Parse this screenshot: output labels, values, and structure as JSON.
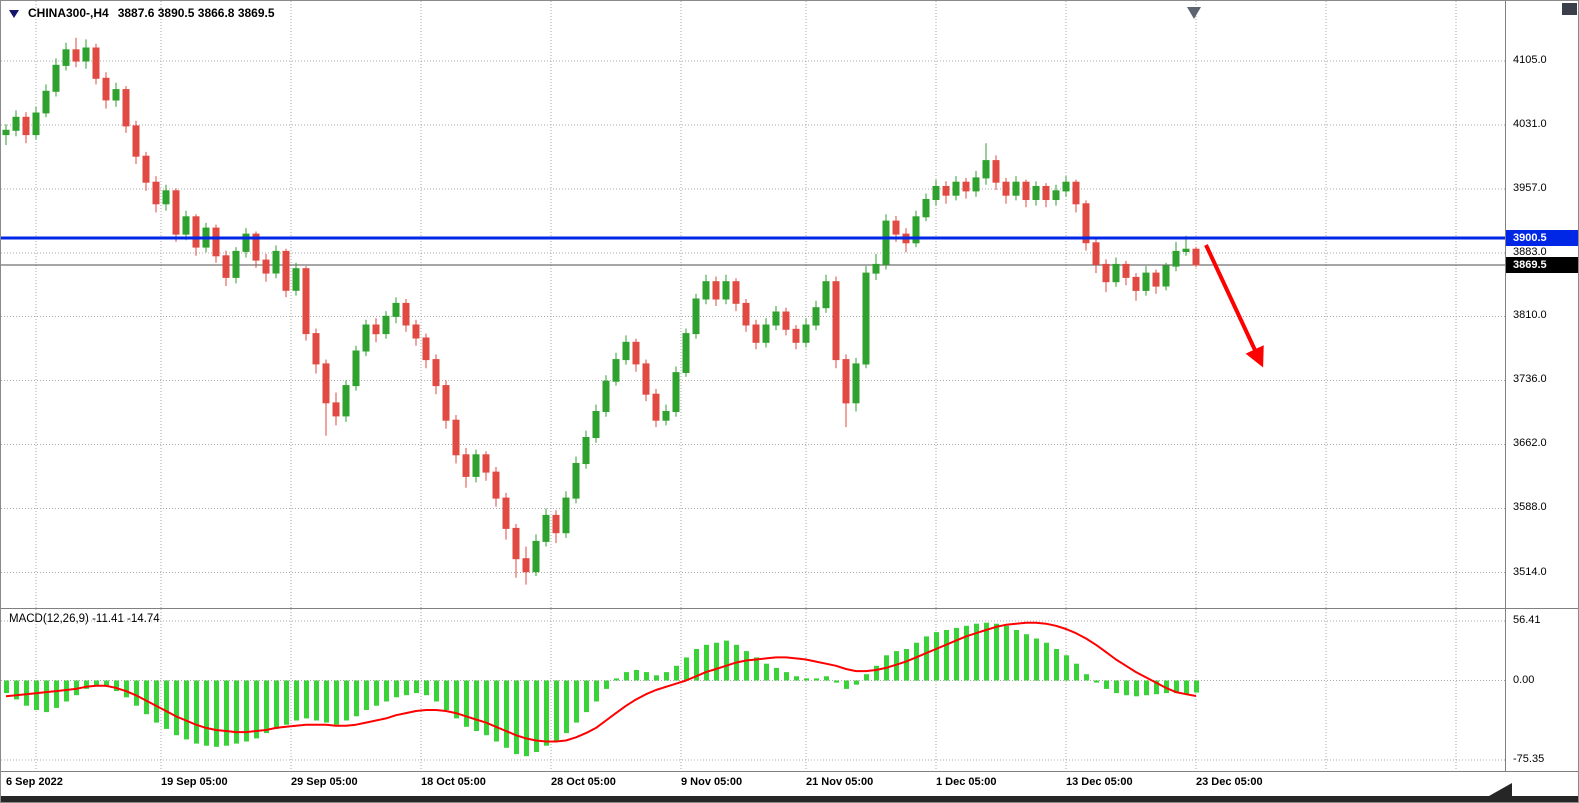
{
  "header": {
    "symbol_list_icon": "▼",
    "title": "CHINA300-,H4",
    "ohlc": "3887.6 3890.5 3866.8 3869.5"
  },
  "price_axis": {
    "line_tag": {
      "text": "3900.5",
      "value": 3900.5
    },
    "price_tag": {
      "text": "3869.5",
      "value": 3869.5
    }
  },
  "macd_panel": {
    "label": "MACD(12,26,9) -11.41 -14.74"
  },
  "colors": {
    "background": "#FFFFFF",
    "grid": "#A8A8A8",
    "candle_up": "#2FA12F",
    "candle_down": "#E04A42",
    "macd_histogram": "#39D339",
    "macd_signal": "#FF0000",
    "horizontal_line": "#0026E6",
    "line_tag_bg": "#0026E6",
    "price_tag_bg": "#000000",
    "current_price_line": "#4D4D4D",
    "arrow": "#FF0000"
  },
  "chart_data": [
    {
      "type": "candlestick",
      "title": "CHINA300-,H4",
      "ohlc_header": {
        "open": 3887.6,
        "high": 3890.5,
        "low": 3866.8,
        "close": 3869.5
      },
      "x_tick_labels": [
        "6 Sep 2022",
        "19 Sep 05:00",
        "29 Sep 05:00",
        "18 Oct 05:00",
        "28 Oct 05:00",
        "9 Nov 05:00",
        "21 Nov 05:00",
        "1 Dec 05:00",
        "13 Dec 05:00",
        "23 Dec 05:00"
      ],
      "y_tick_labels": [
        "4105.0",
        "4031.0",
        "3957.0",
        "3883.0",
        "3810.0",
        "3736.0",
        "3662.0",
        "3588.0",
        "3514.0"
      ],
      "y_tick_values": [
        4105,
        4031,
        3957,
        3883,
        3810,
        3736,
        3662,
        3588,
        3514
      ],
      "ylim": [
        3473,
        4142
      ],
      "grid": true,
      "horizontal_line_value": 3900.5,
      "last_price": 3869.5,
      "trend_arrow": {
        "direction": "down-right",
        "color": "#FF0000"
      },
      "candles_ohlc": [
        [
          4020,
          4032,
          4008,
          4025
        ],
        [
          4025,
          4048,
          4018,
          4040
        ],
        [
          4040,
          4046,
          4010,
          4020
        ],
        [
          4020,
          4052,
          4014,
          4045
        ],
        [
          4045,
          4078,
          4040,
          4070
        ],
        [
          4070,
          4108,
          4064,
          4100
        ],
        [
          4100,
          4126,
          4094,
          4118
        ],
        [
          4118,
          4132,
          4098,
          4105
        ],
        [
          4105,
          4130,
          4096,
          4120
        ],
        [
          4120,
          4125,
          4078,
          4085
        ],
        [
          4085,
          4092,
          4050,
          4060
        ],
        [
          4060,
          4080,
          4052,
          4072
        ],
        [
          4072,
          4076,
          4022,
          4030
        ],
        [
          4030,
          4036,
          3986,
          3995
        ],
        [
          3995,
          4000,
          3955,
          3965
        ],
        [
          3965,
          3972,
          3930,
          3940
        ],
        [
          3940,
          3962,
          3932,
          3955
        ],
        [
          3955,
          3958,
          3896,
          3905
        ],
        [
          3905,
          3932,
          3898,
          3925
        ],
        [
          3925,
          3928,
          3880,
          3890
        ],
        [
          3890,
          3918,
          3884,
          3912
        ],
        [
          3912,
          3916,
          3872,
          3880
        ],
        [
          3880,
          3886,
          3845,
          3855
        ],
        [
          3855,
          3890,
          3848,
          3885
        ],
        [
          3885,
          3912,
          3878,
          3905
        ],
        [
          3905,
          3908,
          3866,
          3875
        ],
        [
          3875,
          3882,
          3850,
          3860
        ],
        [
          3860,
          3892,
          3854,
          3885
        ],
        [
          3885,
          3888,
          3832,
          3840
        ],
        [
          3840,
          3872,
          3834,
          3865
        ],
        [
          3865,
          3868,
          3782,
          3790
        ],
        [
          3790,
          3796,
          3744,
          3755
        ],
        [
          3755,
          3760,
          3672,
          3710
        ],
        [
          3710,
          3722,
          3684,
          3695
        ],
        [
          3695,
          3736,
          3688,
          3730
        ],
        [
          3730,
          3776,
          3724,
          3770
        ],
        [
          3770,
          3806,
          3764,
          3800
        ],
        [
          3800,
          3808,
          3780,
          3790
        ],
        [
          3790,
          3816,
          3784,
          3810
        ],
        [
          3810,
          3832,
          3802,
          3825
        ],
        [
          3825,
          3830,
          3792,
          3800
        ],
        [
          3800,
          3806,
          3776,
          3785
        ],
        [
          3785,
          3790,
          3750,
          3760
        ],
        [
          3760,
          3766,
          3720,
          3730
        ],
        [
          3730,
          3736,
          3680,
          3690
        ],
        [
          3690,
          3696,
          3640,
          3650
        ],
        [
          3650,
          3658,
          3612,
          3625
        ],
        [
          3625,
          3656,
          3618,
          3650
        ],
        [
          3650,
          3654,
          3620,
          3630
        ],
        [
          3630,
          3636,
          3590,
          3600
        ],
        [
          3600,
          3606,
          3552,
          3565
        ],
        [
          3565,
          3570,
          3508,
          3530
        ],
        [
          3530,
          3544,
          3500,
          3515
        ],
        [
          3515,
          3558,
          3510,
          3550
        ],
        [
          3550,
          3588,
          3544,
          3580
        ],
        [
          3580,
          3586,
          3548,
          3560
        ],
        [
          3560,
          3608,
          3554,
          3600
        ],
        [
          3600,
          3648,
          3594,
          3640
        ],
        [
          3640,
          3678,
          3634,
          3670
        ],
        [
          3670,
          3708,
          3664,
          3700
        ],
        [
          3700,
          3742,
          3694,
          3735
        ],
        [
          3735,
          3768,
          3730,
          3760
        ],
        [
          3760,
          3788,
          3754,
          3780
        ],
        [
          3780,
          3784,
          3746,
          3755
        ],
        [
          3755,
          3760,
          3712,
          3720
        ],
        [
          3720,
          3726,
          3682,
          3690
        ],
        [
          3690,
          3708,
          3684,
          3700
        ],
        [
          3700,
          3752,
          3694,
          3745
        ],
        [
          3745,
          3796,
          3740,
          3790
        ],
        [
          3790,
          3836,
          3784,
          3830
        ],
        [
          3830,
          3858,
          3824,
          3850
        ],
        [
          3850,
          3856,
          3822,
          3830
        ],
        [
          3830,
          3858,
          3824,
          3850
        ],
        [
          3850,
          3854,
          3816,
          3825
        ],
        [
          3825,
          3830,
          3792,
          3800
        ],
        [
          3800,
          3806,
          3772,
          3780
        ],
        [
          3780,
          3808,
          3774,
          3800
        ],
        [
          3800,
          3822,
          3794,
          3815
        ],
        [
          3815,
          3820,
          3788,
          3795
        ],
        [
          3795,
          3800,
          3772,
          3780
        ],
        [
          3780,
          3808,
          3774,
          3800
        ],
        [
          3800,
          3828,
          3794,
          3820
        ],
        [
          3820,
          3858,
          3814,
          3850
        ],
        [
          3850,
          3856,
          3750,
          3760
        ],
        [
          3760,
          3766,
          3682,
          3710
        ],
        [
          3710,
          3762,
          3700,
          3755
        ],
        [
          3755,
          3868,
          3750,
          3860
        ],
        [
          3860,
          3882,
          3852,
          3870
        ],
        [
          3870,
          3928,
          3864,
          3920
        ],
        [
          3920,
          3926,
          3896,
          3905
        ],
        [
          3905,
          3912,
          3884,
          3895
        ],
        [
          3895,
          3932,
          3890,
          3925
        ],
        [
          3925,
          3952,
          3920,
          3945
        ],
        [
          3945,
          3968,
          3938,
          3960
        ],
        [
          3960,
          3966,
          3940,
          3950
        ],
        [
          3950,
          3972,
          3944,
          3965
        ],
        [
          3965,
          3970,
          3946,
          3955
        ],
        [
          3955,
          3978,
          3948,
          3970
        ],
        [
          3970,
          4010,
          3962,
          3990
        ],
        [
          3990,
          3996,
          3956,
          3965
        ],
        [
          3965,
          3970,
          3940,
          3950
        ],
        [
          3950,
          3972,
          3944,
          3965
        ],
        [
          3965,
          3968,
          3936,
          3945
        ],
        [
          3945,
          3966,
          3938,
          3960
        ],
        [
          3960,
          3964,
          3936,
          3945
        ],
        [
          3945,
          3962,
          3938,
          3955
        ],
        [
          3955,
          3972,
          3948,
          3965
        ],
        [
          3965,
          3968,
          3930,
          3940
        ],
        [
          3940,
          3944,
          3886,
          3895
        ],
        [
          3895,
          3900,
          3860,
          3870
        ],
        [
          3870,
          3876,
          3838,
          3850
        ],
        [
          3850,
          3878,
          3844,
          3870
        ],
        [
          3870,
          3874,
          3846,
          3855
        ],
        [
          3855,
          3860,
          3828,
          3840
        ],
        [
          3840,
          3868,
          3834,
          3860
        ],
        [
          3860,
          3864,
          3836,
          3845
        ],
        [
          3845,
          3872,
          3840,
          3868
        ],
        [
          3868,
          3896,
          3862,
          3885
        ],
        [
          3885,
          3903,
          3880,
          3887.6
        ],
        [
          3887.6,
          3890.5,
          3866.8,
          3869.5
        ]
      ]
    },
    {
      "type": "bar",
      "title": "MACD(12,26,9)",
      "values_display": {
        "macd": -11.41,
        "signal": -14.74
      },
      "y_tick_labels": [
        "56.41",
        "0.00",
        "-75.35"
      ],
      "y_tick_values": [
        56.41,
        0,
        -75.35
      ],
      "ylim": [
        -86,
        68
      ],
      "series": [
        {
          "name": "MACD histogram",
          "type": "bar",
          "values": [
            -12,
            -18,
            -24,
            -28,
            -30,
            -26,
            -20,
            -14,
            -8,
            -5,
            -6,
            -10,
            -16,
            -24,
            -32,
            -40,
            -46,
            -52,
            -56,
            -60,
            -62,
            -63,
            -62,
            -60,
            -58,
            -55,
            -50,
            -46,
            -42,
            -38,
            -36,
            -38,
            -40,
            -42,
            -38,
            -34,
            -28,
            -24,
            -20,
            -16,
            -14,
            -12,
            -14,
            -20,
            -28,
            -36,
            -44,
            -48,
            -52,
            -58,
            -64,
            -70,
            -72,
            -68,
            -62,
            -58,
            -50,
            -40,
            -30,
            -20,
            -8,
            2,
            8,
            10,
            8,
            5,
            8,
            14,
            22,
            30,
            34,
            36,
            38,
            34,
            28,
            22,
            16,
            12,
            8,
            4,
            2,
            2,
            4,
            -2,
            -8,
            -4,
            6,
            14,
            24,
            28,
            30,
            36,
            42,
            46,
            48,
            50,
            52,
            54,
            55,
            54,
            52,
            48,
            44,
            40,
            36,
            30,
            24,
            16,
            6,
            -2,
            -8,
            -12,
            -14,
            -15,
            -14,
            -13,
            -12,
            -12,
            -13,
            -11.41
          ]
        },
        {
          "name": "Signal line",
          "type": "line",
          "values": [
            -15,
            -14,
            -13,
            -12,
            -11,
            -10,
            -9,
            -8,
            -6,
            -5,
            -5,
            -7,
            -10,
            -14,
            -19,
            -24,
            -29,
            -34,
            -38,
            -42,
            -45,
            -47,
            -48,
            -49,
            -49,
            -48,
            -47,
            -45,
            -44,
            -43,
            -42,
            -42,
            -42,
            -43,
            -43,
            -42,
            -40,
            -38,
            -36,
            -33,
            -31,
            -29,
            -28,
            -28,
            -29,
            -31,
            -34,
            -37,
            -40,
            -44,
            -48,
            -52,
            -55,
            -57,
            -58,
            -58,
            -57,
            -54,
            -50,
            -45,
            -38,
            -31,
            -24,
            -18,
            -13,
            -9,
            -6,
            -3,
            0,
            4,
            8,
            11,
            14,
            17,
            19,
            20,
            21,
            22,
            22,
            21,
            20,
            18,
            16,
            14,
            11,
            9,
            9,
            10,
            12,
            15,
            18,
            22,
            26,
            30,
            34,
            38,
            42,
            45,
            48,
            51,
            53,
            54,
            55,
            55,
            54,
            52,
            49,
            45,
            40,
            34,
            27,
            20,
            14,
            8,
            3,
            -2,
            -7,
            -11,
            -13,
            -14.74
          ]
        }
      ]
    }
  ]
}
